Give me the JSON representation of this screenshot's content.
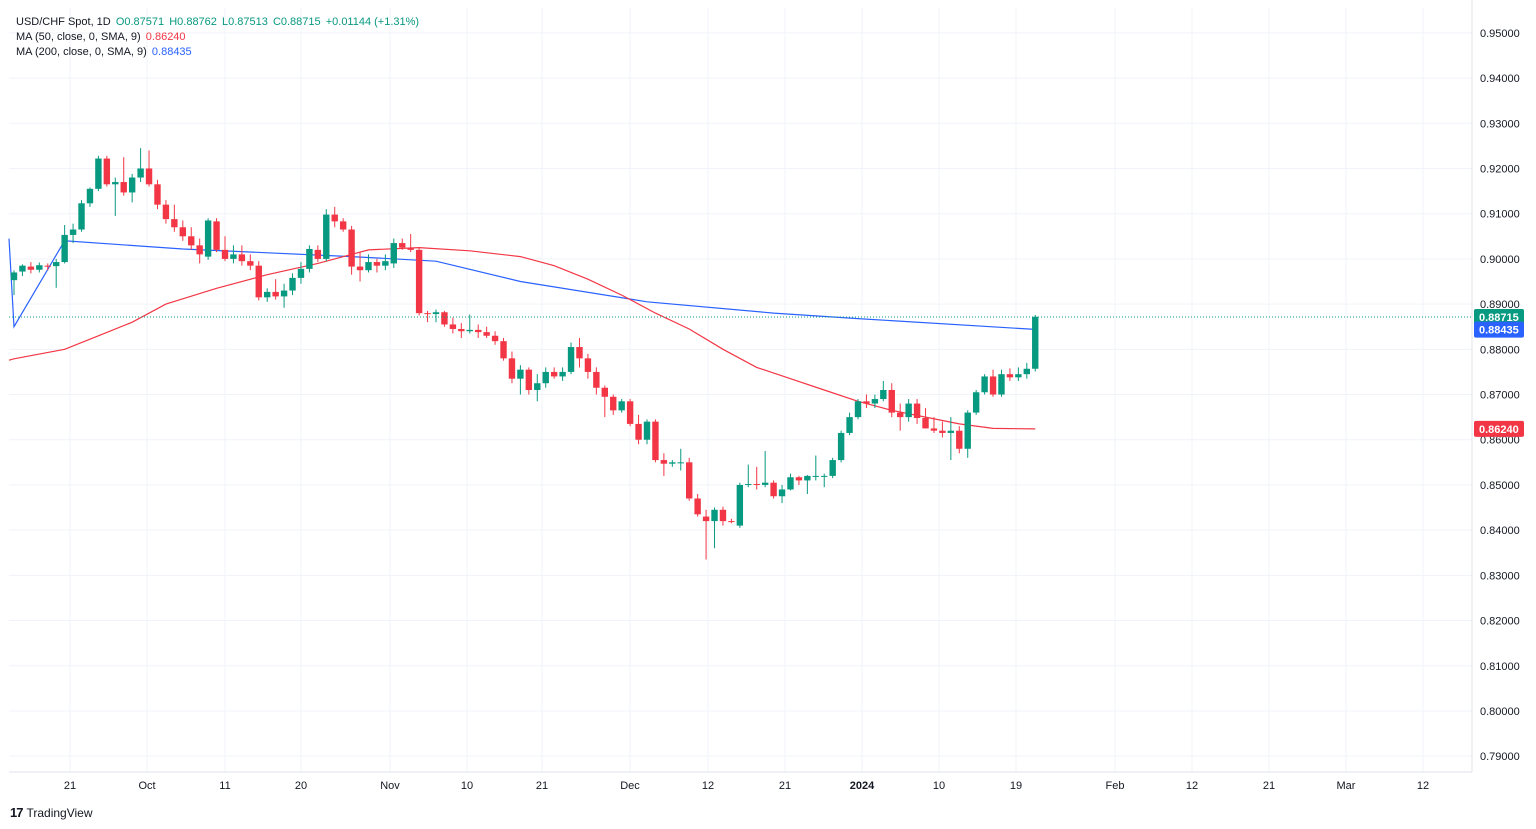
{
  "header": {
    "symbol": "USD/CHF Spot, 1D",
    "open": "O0.87571",
    "high": "H0.88762",
    "low": "L0.87513",
    "close": "C0.88715",
    "change": "+0.01144 (+1.31%)",
    "ma50_label": "MA (50, close, 0, SMA, 9)",
    "ma50_value": "0.86240",
    "ma200_label": "MA (200, close, 0, SMA, 9)",
    "ma200_value": "0.88435"
  },
  "footer": {
    "brand": "TradingView",
    "logo_icon": "tradingview-logo-icon"
  },
  "colors": {
    "up": "#089981",
    "down": "#f23645",
    "ma50": "#f23645",
    "ma200": "#2962ff",
    "grid": "#f0f3fa",
    "text": "#131722"
  },
  "chart_data": {
    "type": "candlestick",
    "title": "USD/CHF Spot, 1D",
    "x_axis_labels": [
      "21",
      "Oct",
      "11",
      "20",
      "Nov",
      "10",
      "21",
      "Dec",
      "12",
      "21",
      "2024",
      "10",
      "19",
      "Feb",
      "12",
      "21",
      "Mar",
      "12"
    ],
    "y_axis_labels": [
      "0.95000",
      "0.94000",
      "0.93000",
      "0.92000",
      "0.91000",
      "0.90000",
      "0.89000",
      "0.88000",
      "0.87000",
      "0.86000",
      "0.85000",
      "0.84000",
      "0.83000",
      "0.82000",
      "0.81000",
      "0.80000",
      "0.79000"
    ],
    "ylim": [
      0.7865,
      0.9555
    ],
    "last_price": "0.88715",
    "ma200_marker": "0.88435",
    "ma50_marker": "0.86240",
    "grid": true,
    "candles": [
      [
        0.8953,
        0.8975,
        0.892,
        0.897
      ],
      [
        0.8972,
        0.8988,
        0.8962,
        0.8985
      ],
      [
        0.8983,
        0.8993,
        0.8968,
        0.8976
      ],
      [
        0.8976,
        0.8992,
        0.897,
        0.8986
      ],
      [
        0.8985,
        0.899,
        0.8975,
        0.8983
      ],
      [
        0.8984,
        0.9,
        0.8936,
        0.8993
      ],
      [
        0.8993,
        0.9075,
        0.899,
        0.9053
      ],
      [
        0.9053,
        0.9078,
        0.9035,
        0.9065
      ],
      [
        0.9065,
        0.913,
        0.906,
        0.9123
      ],
      [
        0.9123,
        0.9158,
        0.9115,
        0.9155
      ],
      [
        0.9155,
        0.9228,
        0.915,
        0.9222
      ],
      [
        0.9222,
        0.9228,
        0.916,
        0.9165
      ],
      [
        0.9165,
        0.918,
        0.9095,
        0.917
      ],
      [
        0.917,
        0.9225,
        0.914,
        0.9147
      ],
      [
        0.9147,
        0.9188,
        0.9125,
        0.918
      ],
      [
        0.918,
        0.9245,
        0.917,
        0.92
      ],
      [
        0.92,
        0.924,
        0.916,
        0.9165
      ],
      [
        0.9165,
        0.9175,
        0.911,
        0.912
      ],
      [
        0.912,
        0.913,
        0.9078,
        0.9088
      ],
      [
        0.9088,
        0.912,
        0.906,
        0.907
      ],
      [
        0.907,
        0.9085,
        0.904,
        0.905
      ],
      [
        0.905,
        0.907,
        0.902,
        0.903
      ],
      [
        0.903,
        0.9045,
        0.899,
        0.901
      ],
      [
        0.9005,
        0.909,
        0.8998,
        0.9085
      ],
      [
        0.9083,
        0.909,
        0.9015,
        0.902
      ],
      [
        0.902,
        0.905,
        0.8995,
        0.9
      ],
      [
        0.9,
        0.903,
        0.899,
        0.901
      ],
      [
        0.901,
        0.903,
        0.8985,
        0.8995
      ],
      [
        0.8995,
        0.901,
        0.8975,
        0.8985
      ],
      [
        0.8985,
        0.8995,
        0.8908,
        0.8915
      ],
      [
        0.8915,
        0.8935,
        0.8905,
        0.8927
      ],
      [
        0.8927,
        0.8955,
        0.891,
        0.8917
      ],
      [
        0.8917,
        0.8945,
        0.8892,
        0.893
      ],
      [
        0.893,
        0.8968,
        0.892,
        0.8958
      ],
      [
        0.8958,
        0.8993,
        0.8945,
        0.8978
      ],
      [
        0.8978,
        0.903,
        0.897,
        0.9022
      ],
      [
        0.902,
        0.903,
        0.8993,
        0.9
      ],
      [
        0.9,
        0.911,
        0.8995,
        0.9098
      ],
      [
        0.9098,
        0.9115,
        0.907,
        0.9083
      ],
      [
        0.9083,
        0.909,
        0.906,
        0.9065
      ],
      [
        0.9065,
        0.9073,
        0.8965,
        0.8983
      ],
      [
        0.8983,
        0.9015,
        0.895,
        0.8975
      ],
      [
        0.8975,
        0.901,
        0.897,
        0.8993
      ],
      [
        0.8993,
        0.9,
        0.897,
        0.8985
      ],
      [
        0.8985,
        0.901,
        0.8975,
        0.8995
      ],
      [
        0.899,
        0.9045,
        0.898,
        0.9035
      ],
      [
        0.9035,
        0.9045,
        0.902,
        0.9025
      ],
      [
        0.9025,
        0.9055,
        0.9015,
        0.902
      ],
      [
        0.902,
        0.9025,
        0.8875,
        0.888
      ],
      [
        0.888,
        0.8885,
        0.886,
        0.8878
      ],
      [
        0.8878,
        0.8888,
        0.886,
        0.8882
      ],
      [
        0.8882,
        0.8885,
        0.885,
        0.8855
      ],
      [
        0.8855,
        0.887,
        0.8835,
        0.8845
      ],
      [
        0.8845,
        0.8858,
        0.8825,
        0.884
      ],
      [
        0.884,
        0.8877,
        0.8835,
        0.8843
      ],
      [
        0.8843,
        0.8855,
        0.8825,
        0.8838
      ],
      [
        0.8838,
        0.885,
        0.8825,
        0.883
      ],
      [
        0.883,
        0.884,
        0.881,
        0.8818
      ],
      [
        0.8818,
        0.8825,
        0.8775,
        0.878
      ],
      [
        0.878,
        0.8795,
        0.8725,
        0.8735
      ],
      [
        0.8735,
        0.8765,
        0.87,
        0.8755
      ],
      [
        0.8755,
        0.876,
        0.87,
        0.871
      ],
      [
        0.871,
        0.8745,
        0.8685,
        0.8725
      ],
      [
        0.8725,
        0.876,
        0.8715,
        0.875
      ],
      [
        0.875,
        0.876,
        0.8735,
        0.874
      ],
      [
        0.874,
        0.876,
        0.873,
        0.875
      ],
      [
        0.875,
        0.8815,
        0.8745,
        0.8805
      ],
      [
        0.8805,
        0.8825,
        0.876,
        0.878
      ],
      [
        0.878,
        0.879,
        0.8735,
        0.875
      ],
      [
        0.875,
        0.876,
        0.87,
        0.8715
      ],
      [
        0.8715,
        0.872,
        0.865,
        0.8695
      ],
      [
        0.8695,
        0.87,
        0.8655,
        0.8665
      ],
      [
        0.8665,
        0.869,
        0.866,
        0.8685
      ],
      [
        0.8685,
        0.869,
        0.863,
        0.8635
      ],
      [
        0.8635,
        0.8655,
        0.859,
        0.86
      ],
      [
        0.86,
        0.8645,
        0.859,
        0.864
      ],
      [
        0.864,
        0.8645,
        0.855,
        0.8555
      ],
      [
        0.8555,
        0.857,
        0.852,
        0.8547
      ],
      [
        0.8547,
        0.8555,
        0.854,
        0.855
      ],
      [
        0.855,
        0.858,
        0.8532,
        0.855
      ],
      [
        0.855,
        0.856,
        0.8465,
        0.847
      ],
      [
        0.847,
        0.848,
        0.843,
        0.8435
      ],
      [
        0.843,
        0.8445,
        0.8335,
        0.842
      ],
      [
        0.842,
        0.845,
        0.836,
        0.8445
      ],
      [
        0.8445,
        0.8452,
        0.841,
        0.842
      ],
      [
        0.842,
        0.8425,
        0.8415,
        0.8418
      ],
      [
        0.841,
        0.8505,
        0.8405,
        0.85
      ],
      [
        0.85,
        0.8545,
        0.8495,
        0.8502
      ],
      [
        0.8502,
        0.854,
        0.849,
        0.85
      ],
      [
        0.85,
        0.8575,
        0.8495,
        0.8505
      ],
      [
        0.8505,
        0.851,
        0.847,
        0.8475
      ],
      [
        0.8475,
        0.85,
        0.846,
        0.849
      ],
      [
        0.849,
        0.8525,
        0.8488,
        0.8517
      ],
      [
        0.8517,
        0.852,
        0.85,
        0.851
      ],
      [
        0.851,
        0.8522,
        0.848,
        0.852
      ],
      [
        0.852,
        0.8565,
        0.851,
        0.852
      ],
      [
        0.852,
        0.8525,
        0.8495,
        0.852
      ],
      [
        0.852,
        0.856,
        0.8515,
        0.8555
      ],
      [
        0.8555,
        0.862,
        0.855,
        0.8615
      ],
      [
        0.8615,
        0.866,
        0.861,
        0.865
      ],
      [
        0.865,
        0.869,
        0.8645,
        0.8685
      ],
      [
        0.8685,
        0.87,
        0.867,
        0.868
      ],
      [
        0.868,
        0.87,
        0.867,
        0.869
      ],
      [
        0.869,
        0.873,
        0.8685,
        0.871
      ],
      [
        0.871,
        0.8725,
        0.865,
        0.866
      ],
      [
        0.866,
        0.868,
        0.862,
        0.865
      ],
      [
        0.865,
        0.869,
        0.864,
        0.868
      ],
      [
        0.868,
        0.869,
        0.8635,
        0.8648
      ],
      [
        0.8648,
        0.867,
        0.8625,
        0.8625
      ],
      [
        0.8625,
        0.865,
        0.8615,
        0.862
      ],
      [
        0.862,
        0.864,
        0.8605,
        0.8615
      ],
      [
        0.8615,
        0.865,
        0.8555,
        0.862
      ],
      [
        0.862,
        0.863,
        0.857,
        0.858
      ],
      [
        0.858,
        0.8665,
        0.856,
        0.866
      ],
      [
        0.866,
        0.871,
        0.8655,
        0.8705
      ],
      [
        0.8705,
        0.8745,
        0.87,
        0.874
      ],
      [
        0.874,
        0.8755,
        0.8695,
        0.87
      ],
      [
        0.87,
        0.8755,
        0.8695,
        0.8745
      ],
      [
        0.8745,
        0.8758,
        0.873,
        0.8738
      ],
      [
        0.8738,
        0.876,
        0.873,
        0.8745
      ],
      [
        0.8745,
        0.877,
        0.8735,
        0.8757
      ],
      [
        0.8757,
        0.8876,
        0.8751,
        0.8872
      ]
    ],
    "ma200_points": [
      [
        0,
        0.885
      ],
      [
        6,
        0.904
      ],
      [
        20,
        0.9022
      ],
      [
        40,
        0.9005
      ],
      [
        50,
        0.8995
      ],
      [
        60,
        0.895
      ],
      [
        75,
        0.8905
      ],
      [
        90,
        0.888
      ],
      [
        100,
        0.8868
      ],
      [
        121,
        0.8844
      ]
    ],
    "ma50_points": [
      [
        0,
        0.8779
      ],
      [
        6,
        0.88
      ],
      [
        10,
        0.883
      ],
      [
        14,
        0.886
      ],
      [
        18,
        0.89
      ],
      [
        24,
        0.8935
      ],
      [
        30,
        0.8965
      ],
      [
        36,
        0.899
      ],
      [
        42,
        0.902
      ],
      [
        48,
        0.9025
      ],
      [
        54,
        0.9018
      ],
      [
        60,
        0.9005
      ],
      [
        64,
        0.8985
      ],
      [
        68,
        0.8955
      ],
      [
        72,
        0.892
      ],
      [
        76,
        0.888
      ],
      [
        80,
        0.8845
      ],
      [
        84,
        0.88
      ],
      [
        88,
        0.876
      ],
      [
        92,
        0.8735
      ],
      [
        96,
        0.871
      ],
      [
        100,
        0.8685
      ],
      [
        104,
        0.8665
      ],
      [
        108,
        0.865
      ],
      [
        112,
        0.8635
      ],
      [
        116,
        0.8625
      ],
      [
        121,
        0.8624
      ]
    ]
  }
}
